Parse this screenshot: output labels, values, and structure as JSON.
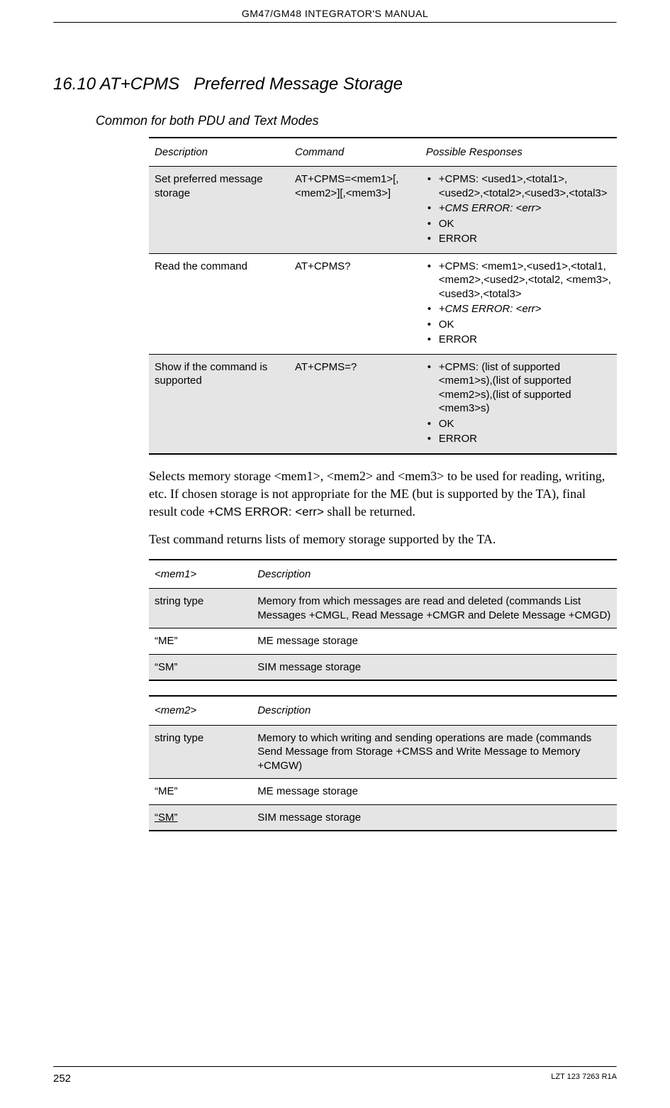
{
  "header": {
    "doc_title": "GM47/GM48 INTEGRATOR'S MANUAL"
  },
  "section": {
    "number": "16.10",
    "title_cmd": "AT+CPMS",
    "title_name": "Preferred Message Storage",
    "subheading": "Common for both PDU and Text Modes"
  },
  "cmd_table": {
    "headers": {
      "c1": "Description",
      "c2": "Command",
      "c3": "Possible Responses"
    },
    "rows": [
      {
        "desc": "Set preferred message storage",
        "cmd": "AT+CPMS=<mem1>[,<mem2>][,<mem3>]",
        "resp": [
          {
            "text": "+CPMS: <used1>,<total1>,<used2>,<total2>,<used3>,<total3>",
            "italic": false
          },
          {
            "text": "+CMS ERROR: <err>",
            "italic": true
          },
          {
            "text": "OK",
            "italic": false
          },
          {
            "text": "ERROR",
            "italic": false
          }
        ],
        "shaded": true
      },
      {
        "desc": "Read the command",
        "cmd": "AT+CPMS?",
        "resp": [
          {
            "text": "+CPMS: <mem1>,<used1>,<total1, <mem2>,<used2>,<total2, <mem3>,<used3>,<total3>",
            "italic": false
          },
          {
            "text": "+CMS ERROR: <err>",
            "italic": true
          },
          {
            "text": "OK",
            "italic": false
          },
          {
            "text": "ERROR",
            "italic": false
          }
        ],
        "shaded": false
      },
      {
        "desc": "Show if the command is supported",
        "cmd": "AT+CPMS=?",
        "resp": [
          {
            "text": "+CPMS: (list of supported <mem1>s),(list of supported <mem2>s),(list of supported <mem3>s)",
            "italic": false
          },
          {
            "text": "OK",
            "italic": false
          },
          {
            "text": "ERROR",
            "italic": false
          }
        ],
        "shaded": true
      }
    ]
  },
  "paragraphs": {
    "p1_pre": "Selects memory storage <mem1>, <mem2> and <mem3> to be used for reading, writing, etc. If chosen storage is not appropriate for the ME (but is supported by the TA), final result code ",
    "p1_cms": "+CMS ERROR: <err>",
    "p1_post": " shall be returned.",
    "p2": "Test command returns lists of memory storage supported by the TA."
  },
  "def_table1": {
    "headers": {
      "c1": "<mem1>",
      "c2": "Description"
    },
    "rows": [
      {
        "k": "string type",
        "v": "Memory from which messages are read and deleted (commands List Messages +CMGL, Read Message +CMGR and Delete Message +CMGD)",
        "shaded": true
      },
      {
        "k": "“ME”",
        "v": "ME message storage",
        "shaded": false
      },
      {
        "k": "“SM”",
        "v": "SIM message storage",
        "shaded": true
      }
    ]
  },
  "def_table2": {
    "headers": {
      "c1": "<mem2>",
      "c2": "Description"
    },
    "rows": [
      {
        "k": "string type",
        "v": "Memory to which writing and sending operations are made (commands Send Message from Storage +CMSS and Write Message to Memory +CMGW)",
        "shaded": true
      },
      {
        "k": "“ME”",
        "v": "ME message storage",
        "shaded": false
      },
      {
        "k": "“SM”",
        "v": "SIM message storage",
        "shaded": true,
        "underline_key": true
      }
    ]
  },
  "footer": {
    "page_number": "252",
    "doc_id": "LZT 123 7263 R1A"
  }
}
